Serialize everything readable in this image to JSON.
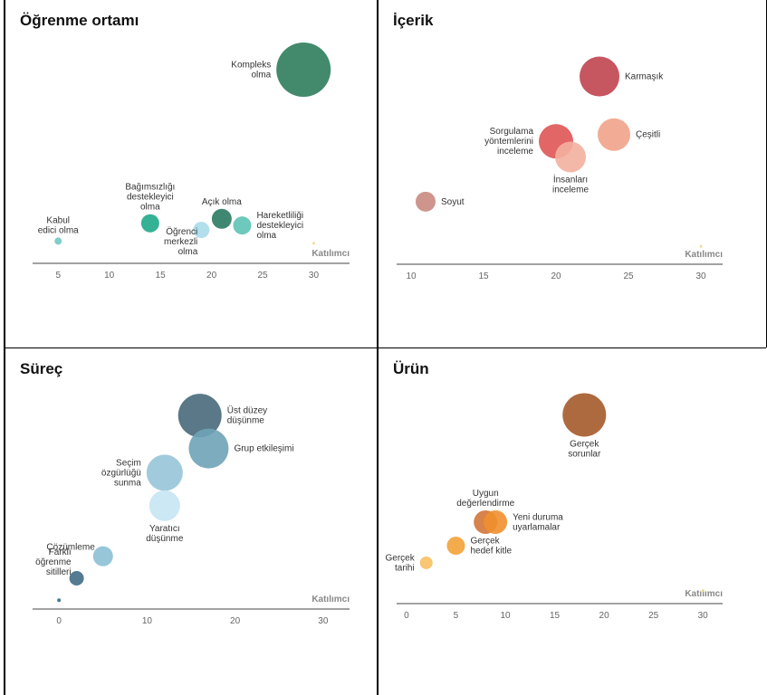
{
  "chart_data": [
    {
      "type": "scatter",
      "title": "Öğrenme ortamı",
      "xlabel": "Katılımcı",
      "xlim": [
        2.5,
        33.5
      ],
      "ticks": [
        5,
        10,
        15,
        20,
        25,
        30
      ],
      "ylim": [
        0,
        100
      ],
      "grid": false,
      "points": [
        {
          "label": "Kompleks\nolma",
          "x": 29,
          "y": 87,
          "size": 30,
          "color": "#2e7d5b",
          "label_side": "left"
        },
        {
          "label": "Bağımsızlığı\ndestekleyici\nolma",
          "x": 14,
          "y": 18,
          "size": 10,
          "color": "#1fa88a",
          "label_side": "above"
        },
        {
          "label": "Açık olma",
          "x": 21,
          "y": 20,
          "size": 11,
          "color": "#2b7a62",
          "label_side": "above"
        },
        {
          "label": "Öğrenci\nmerkezli\nolma",
          "x": 19,
          "y": 15,
          "size": 9,
          "color": "#a8dcea",
          "label_side": "below-left"
        },
        {
          "label": "Hareketliliği\ndestekleyici\nolma",
          "x": 23,
          "y": 17,
          "size": 10,
          "color": "#5cc3b5",
          "label_side": "right"
        },
        {
          "label": "Kabul\nedici olma",
          "x": 5,
          "y": 10,
          "size": 4,
          "color": "#72c9c2",
          "label_side": "above"
        },
        {
          "label": "",
          "x": 30,
          "y": 9,
          "size": 1.5,
          "color": "#f0d78a",
          "label_side": "none"
        }
      ]
    },
    {
      "type": "scatter",
      "title": "İçerik",
      "xlabel": "Katılımcı",
      "xlim": [
        9,
        31.5
      ],
      "ticks": [
        10,
        15,
        20,
        25,
        30
      ],
      "ylim": [
        0,
        100
      ],
      "grid": false,
      "points": [
        {
          "label": "Karmaşık",
          "x": 23,
          "y": 84,
          "size": 22,
          "color": "#c0444f",
          "label_side": "right"
        },
        {
          "label": "Çeşitli",
          "x": 24,
          "y": 58,
          "size": 18,
          "color": "#f1a38a",
          "label_side": "right"
        },
        {
          "label": "Sorgulama\nyöntemlerini\ninceleme",
          "x": 20,
          "y": 55,
          "size": 19,
          "color": "#e05555",
          "label_side": "left"
        },
        {
          "label": "İnsanları\ninceleme",
          "x": 21,
          "y": 48,
          "size": 17,
          "color": "#f3b0a0",
          "label_side": "below"
        },
        {
          "label": "Soyut",
          "x": 11,
          "y": 28,
          "size": 11,
          "color": "#c98a80",
          "label_side": "right"
        },
        {
          "label": "",
          "x": 30,
          "y": 8,
          "size": 1.5,
          "color": "#f0d78a",
          "label_side": "none"
        }
      ]
    },
    {
      "type": "scatter",
      "title": "Süreç",
      "xlabel": "Katılımcı",
      "xlim": [
        -3,
        33
      ],
      "ticks": [
        0,
        10,
        20,
        30
      ],
      "ylim": [
        0,
        100
      ],
      "grid": false,
      "points": [
        {
          "label": "Üst düzey\ndüşünme",
          "x": 16,
          "y": 88,
          "size": 24,
          "color": "#48697a",
          "label_side": "right"
        },
        {
          "label": "Grup etkileşimi",
          "x": 17,
          "y": 73,
          "size": 22,
          "color": "#6ea3b6",
          "label_side": "right"
        },
        {
          "label": "Seçim\nözgürlüğü\nsunma",
          "x": 12,
          "y": 62,
          "size": 20,
          "color": "#97c5d8",
          "label_side": "left"
        },
        {
          "label": "Yaratıcı\ndüşünme",
          "x": 12,
          "y": 47,
          "size": 17,
          "color": "#c5e6f3",
          "label_side": "below"
        },
        {
          "label": "Çözümleme",
          "x": 5,
          "y": 24,
          "size": 11,
          "color": "#8cc0d5",
          "label_side": "above-left"
        },
        {
          "label": "Farklı\nöğrenme\nsitilleri",
          "x": 2,
          "y": 14,
          "size": 8,
          "color": "#416d86",
          "label_side": "above-left"
        },
        {
          "label": "",
          "x": 0,
          "y": 4,
          "size": 2,
          "color": "#2d6b88",
          "label_side": "none"
        }
      ]
    },
    {
      "type": "scatter",
      "title": "Ürün",
      "xlabel": "Katılımcı",
      "xlim": [
        -1,
        32
      ],
      "ticks": [
        0,
        5,
        10,
        15,
        20,
        25,
        30
      ],
      "ylim": [
        0,
        100
      ],
      "grid": false,
      "points": [
        {
          "label": "Gerçek\nsorunlar",
          "x": 18,
          "y": 88,
          "size": 24,
          "color": "#a55a2a",
          "label_side": "below"
        },
        {
          "label": "Uygun\ndeğerlendirme",
          "x": 8,
          "y": 38,
          "size": 13,
          "color": "#d2753a",
          "label_side": "above"
        },
        {
          "label": "Yeni duruma\nuyarlamalar",
          "x": 9,
          "y": 38,
          "size": 13,
          "color": "#ef8f2e",
          "label_side": "right"
        },
        {
          "label": "Gerçek\nhedef kitle",
          "x": 5,
          "y": 27,
          "size": 10,
          "color": "#f2a238",
          "label_side": "right"
        },
        {
          "label": "Gerçek\ntarihi",
          "x": 2,
          "y": 19,
          "size": 7,
          "color": "#f8c063",
          "label_side": "left"
        },
        {
          "label": "",
          "x": 30,
          "y": 6,
          "size": 1.5,
          "color": "#f0d78a",
          "label_side": "none"
        }
      ]
    }
  ]
}
